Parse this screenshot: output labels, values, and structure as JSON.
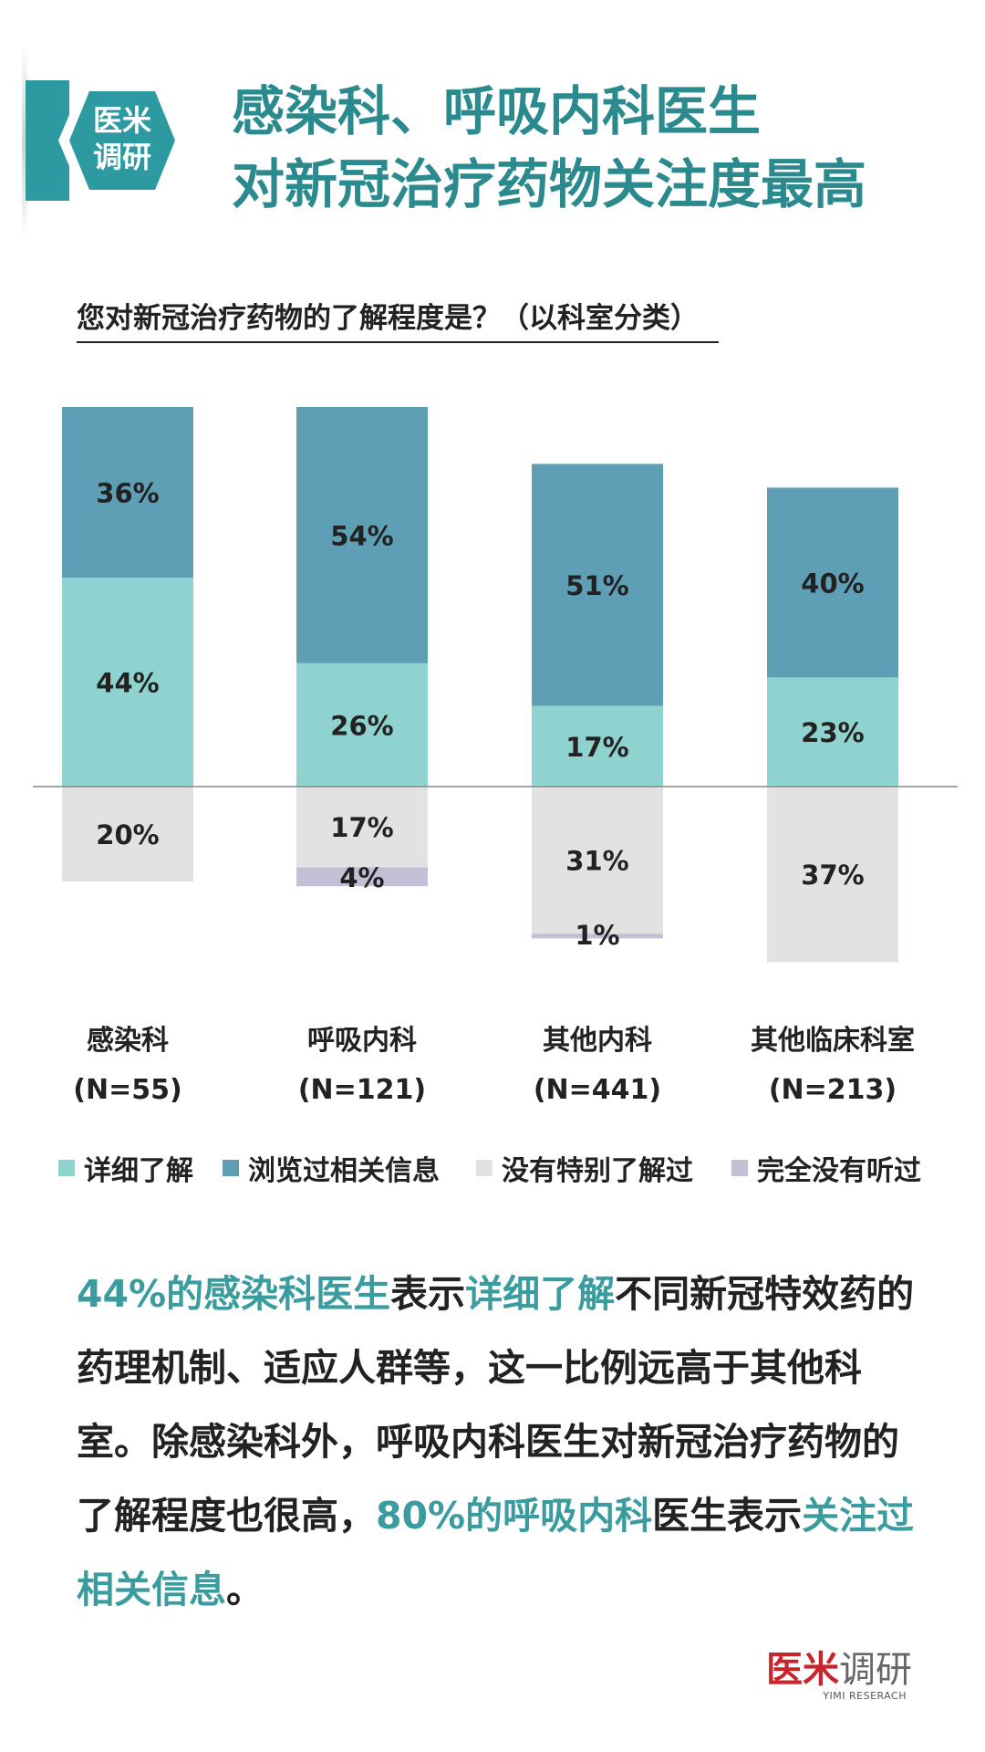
{
  "badge": {
    "line1": "医米",
    "line2": "调研"
  },
  "title": {
    "line1": "感染科、呼吸内科医生",
    "line2": "对新冠治疗药物关注度最高"
  },
  "question": "您对新冠治疗药物的了解程度是？（以科室分类）",
  "colors": {
    "detailed": "#8fd3d0",
    "browsed": "#5e9fb5",
    "not_special": "#e2e2e2",
    "never": "#c3c0d6",
    "highlight": "#3a9c9e",
    "title": "#2a8a8e"
  },
  "chart_data": {
    "type": "bar",
    "stacking": "diverging",
    "title": "您对新冠治疗药物的了解程度是？（以科室分类）",
    "categories": [
      "感染科",
      "呼吸内科",
      "其他内科",
      "其他临床科室"
    ],
    "category_n": [
      "(N=55)",
      "(N=121)",
      "(N=441)",
      "(N=213)"
    ],
    "series": [
      {
        "name": "详细了解",
        "values": [
          44,
          26,
          17,
          23
        ],
        "labels": [
          "44%",
          "26%",
          "17%",
          "23%"
        ],
        "direction": "up"
      },
      {
        "name": "浏览过相关信息",
        "values": [
          36,
          54,
          51,
          40
        ],
        "labels": [
          "36%",
          "54%",
          "51%",
          "40%"
        ],
        "direction": "up"
      },
      {
        "name": "没有特别了解过",
        "values": [
          20,
          17,
          31,
          37
        ],
        "labels": [
          "20%",
          "17%",
          "31%",
          "37%"
        ],
        "direction": "down"
      },
      {
        "name": "完全没有听过",
        "values": [
          0,
          4,
          1,
          0
        ],
        "labels": [
          "",
          "4%",
          "1%",
          ""
        ],
        "direction": "down"
      }
    ],
    "legend": "bottom"
  },
  "paragraph": [
    {
      "text": "44%的感染科医生",
      "hl": true
    },
    {
      "text": "表示",
      "hl": false
    },
    {
      "text": "详细了解",
      "hl": true
    },
    {
      "text": "不同新冠特效药的药理机制、适应人群等，这一比例远高于其他科室。除感染科外，呼吸内科医生对新冠治疗药物的了解程度也很高，",
      "hl": false
    },
    {
      "text": "80%的呼吸内科",
      "hl": true
    },
    {
      "text": "医生表示",
      "hl": false
    },
    {
      "text": "关注过相关信息",
      "hl": true
    },
    {
      "text": "。",
      "hl": false
    }
  ],
  "logo": {
    "red": "医米",
    "grey": "调研",
    "sub": "YIMI RESERACH"
  }
}
